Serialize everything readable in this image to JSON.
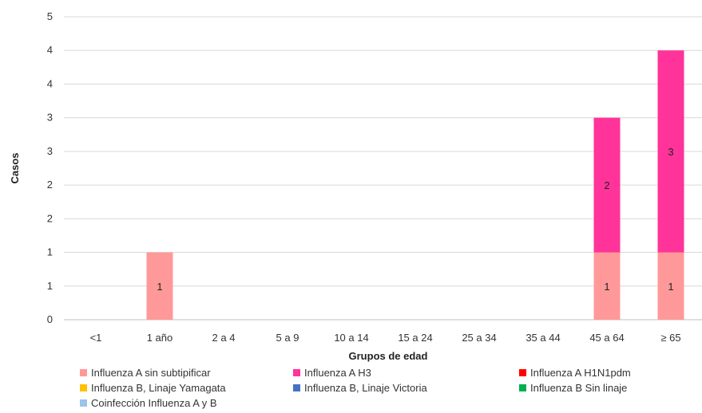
{
  "chart_data": {
    "type": "bar",
    "stacked": true,
    "title": "",
    "xlabel": "Grupos de edad",
    "ylabel": "Casos",
    "categories": [
      "<1",
      "1 año",
      "2 a 4",
      "5 a 9",
      "10 a 14",
      "15 a 24",
      "25 a 34",
      "35 a 44",
      "45 a 64",
      "≥ 65"
    ],
    "y_tick_labels": [
      "0",
      "1",
      "1",
      "2",
      "2",
      "3",
      "3",
      "4",
      "4",
      "5"
    ],
    "ylim": [
      0,
      4.5
    ],
    "grid": true,
    "legend_position": "bottom",
    "series": [
      {
        "name": "Influenza A sin subtipificar",
        "color": "#FF9999",
        "values": [
          0,
          1,
          0,
          0,
          0,
          0,
          0,
          0,
          1,
          1
        ]
      },
      {
        "name": "Influenza A H3",
        "color": "#FF3399",
        "values": [
          0,
          0,
          0,
          0,
          0,
          0,
          0,
          0,
          2,
          3
        ]
      },
      {
        "name": "Influenza A H1N1pdm",
        "color": "#FF0000",
        "values": [
          0,
          0,
          0,
          0,
          0,
          0,
          0,
          0,
          0,
          0
        ]
      },
      {
        "name": "Influenza B, Linaje Yamagata",
        "color": "#FFC000",
        "values": [
          0,
          0,
          0,
          0,
          0,
          0,
          0,
          0,
          0,
          0
        ]
      },
      {
        "name": "Influenza B, Linaje Victoria",
        "color": "#4472C4",
        "values": [
          0,
          0,
          0,
          0,
          0,
          0,
          0,
          0,
          0,
          0
        ]
      },
      {
        "name": "Influenza B Sin linaje",
        "color": "#00B050",
        "values": [
          0,
          0,
          0,
          0,
          0,
          0,
          0,
          0,
          0,
          0
        ]
      },
      {
        "name": "Coinfección Influenza A y B",
        "color": "#9DC3E6",
        "values": [
          0,
          0,
          0,
          0,
          0,
          0,
          0,
          0,
          0,
          0
        ]
      }
    ]
  }
}
